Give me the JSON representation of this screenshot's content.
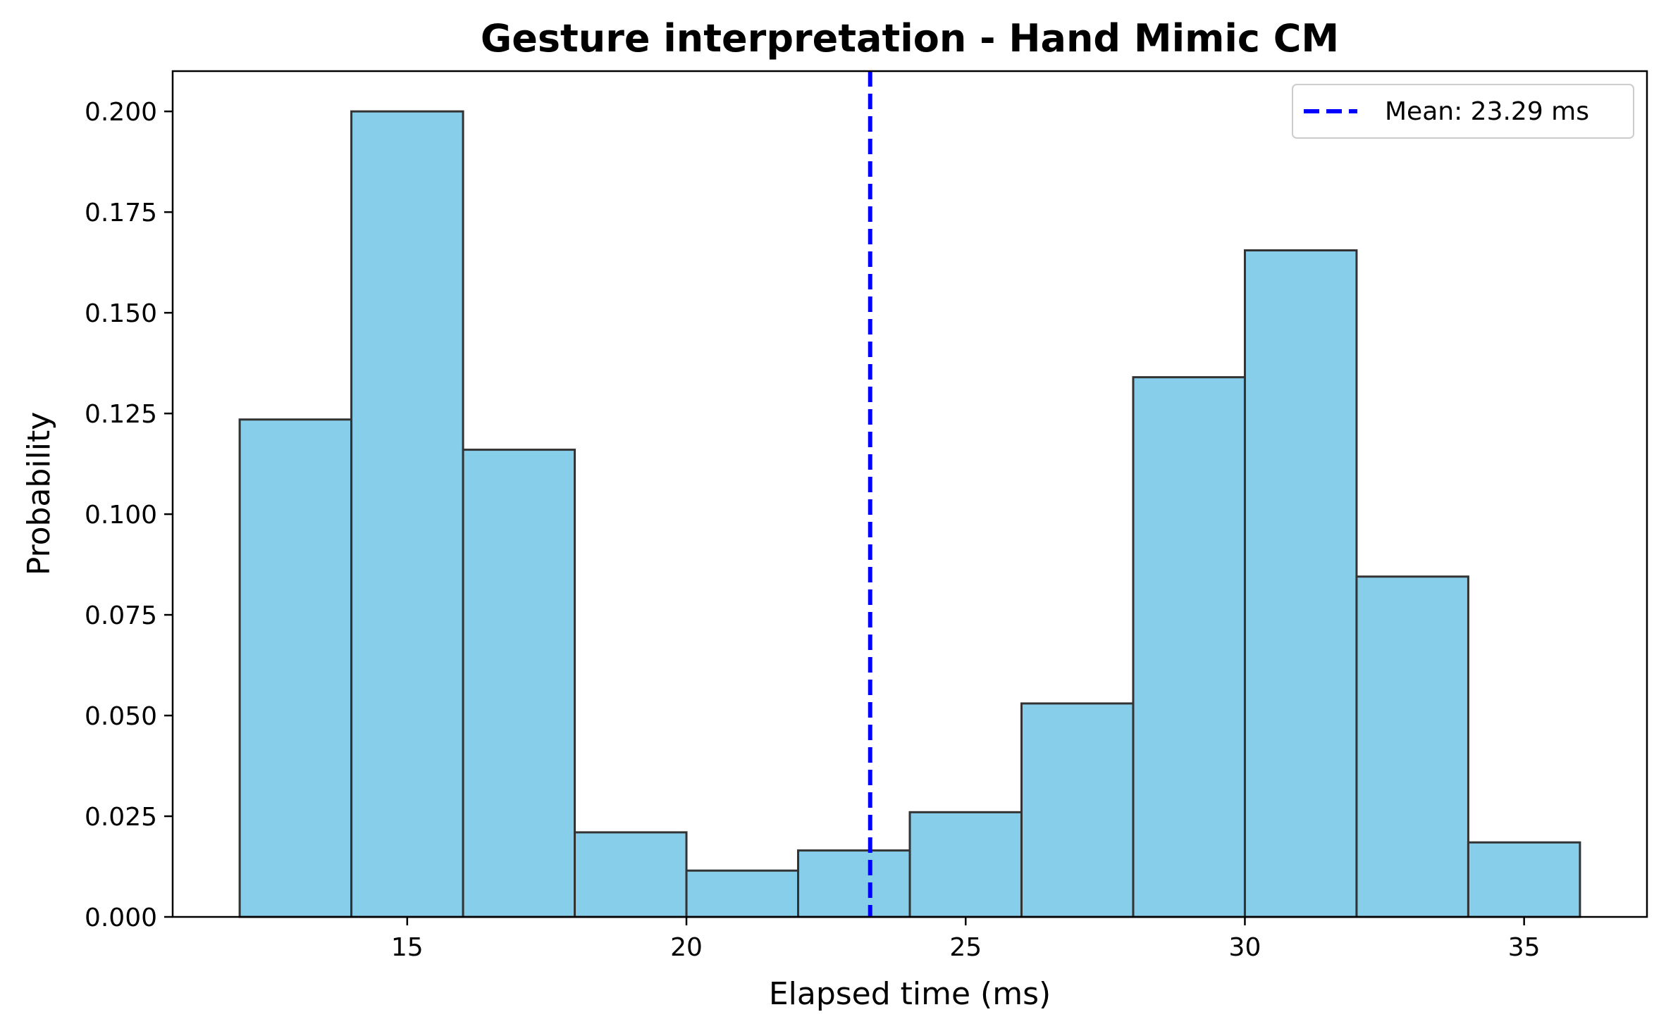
{
  "chart_data": {
    "type": "bar",
    "title": "Gesture interpretation - Hand Mimic CM",
    "xlabel": "Elapsed time (ms)",
    "ylabel": "Probability",
    "xlim": [
      10.8,
      37.2
    ],
    "ylim": [
      0,
      0.21
    ],
    "xticks": [
      15,
      20,
      25,
      30,
      35
    ],
    "yticks": [
      0.0,
      0.025,
      0.05,
      0.075,
      0.1,
      0.125,
      0.15,
      0.175,
      0.2
    ],
    "xtick_labels": [
      "15",
      "20",
      "25",
      "30",
      "35"
    ],
    "ytick_labels": [
      "0.000",
      "0.025",
      "0.050",
      "0.075",
      "0.100",
      "0.125",
      "0.150",
      "0.175",
      "0.200"
    ],
    "bin_edges": [
      12,
      14,
      16,
      18,
      20,
      22,
      24,
      26,
      28,
      30,
      32,
      34,
      36
    ],
    "values": [
      0.1235,
      0.2,
      0.116,
      0.021,
      0.0115,
      0.0165,
      0.026,
      0.053,
      0.134,
      0.1655,
      0.0845,
      0.0185
    ],
    "bar_color": "#87ceeb",
    "bar_edge_color": "#333333",
    "mean": 23.29,
    "mean_line_color": "#0000ff",
    "legend": {
      "entries": [
        "Mean: 23.29 ms"
      ],
      "placement": "top-right"
    },
    "grid": false
  }
}
